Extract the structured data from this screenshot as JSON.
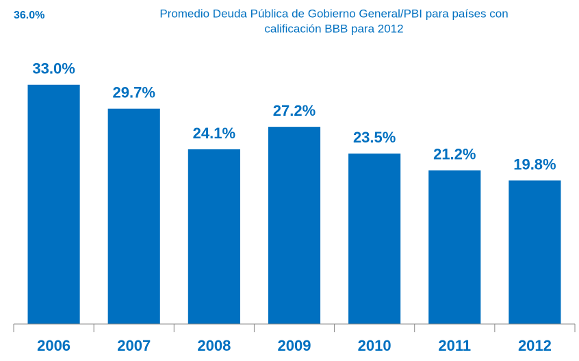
{
  "chart_data": {
    "type": "bar",
    "title": [
      "Promedio Deuda Pública de Gobierno General/PBI  para países con",
      "calificación BBB para 2012"
    ],
    "categories": [
      "2006",
      "2007",
      "2008",
      "2009",
      "2010",
      "2011",
      "2012"
    ],
    "values": [
      33.0,
      29.7,
      24.1,
      27.2,
      23.5,
      21.2,
      19.8
    ],
    "value_labels": [
      "33.0%",
      "29.7%",
      "24.1%",
      "27.2%",
      "23.5%",
      "21.2%",
      "19.8%"
    ],
    "color": "#0070c0",
    "ylim": [
      0,
      36
    ],
    "yticks": [
      {
        "value": 36,
        "label": "36.0%"
      }
    ],
    "grid": false
  }
}
